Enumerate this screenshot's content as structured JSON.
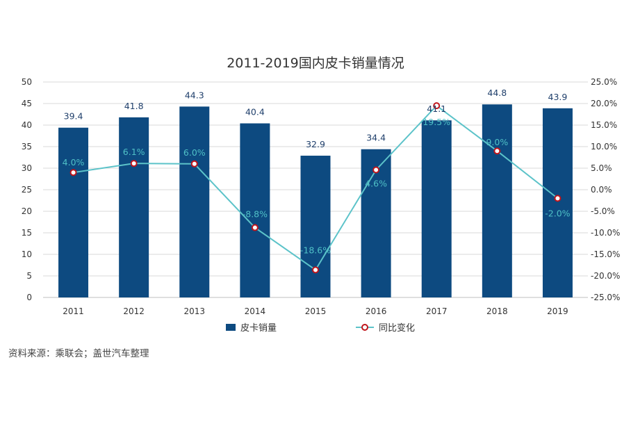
{
  "chart_data": {
    "type": "bar",
    "title": "2011-2019国内皮卡销量情况",
    "categories": [
      "2011",
      "2012",
      "2013",
      "2014",
      "2015",
      "2016",
      "2017",
      "2018",
      "2019"
    ],
    "series": [
      {
        "name": "皮卡销量",
        "kind": "bar",
        "axis": "left",
        "color": "#0d4a80",
        "values": [
          39.4,
          41.8,
          44.3,
          40.4,
          32.9,
          34.4,
          41.1,
          44.8,
          43.9
        ],
        "labels": [
          "39.4",
          "41.8",
          "44.3",
          "40.4",
          "32.9",
          "34.4",
          "41.1",
          "44.8",
          "43.9"
        ]
      },
      {
        "name": "同比变化",
        "kind": "line",
        "axis": "right",
        "color": "#5cc3c9",
        "marker_color": "#c0151b",
        "values": [
          4.0,
          6.1,
          6.0,
          -8.8,
          -18.6,
          4.6,
          19.5,
          9.0,
          -2.0
        ],
        "labels": [
          "4.0%",
          "6.1%",
          "6.0%",
          "-8.8%",
          "-18.6%",
          "4.6%",
          "19.5%",
          "9.0%",
          "-2.0%"
        ]
      }
    ],
    "y_left": {
      "min": 0,
      "max": 50,
      "step": 5,
      "ticks": [
        "0",
        "5",
        "10",
        "15",
        "20",
        "25",
        "30",
        "35",
        "40",
        "45",
        "50"
      ]
    },
    "y_right": {
      "min": -25,
      "max": 25,
      "step": 5,
      "ticks": [
        "-25.0%",
        "-20.0%",
        "-15.0%",
        "-10.0%",
        "-5.0%",
        "0.0%",
        "5.0%",
        "10.0%",
        "15.0%",
        "20.0%",
        "25.0%"
      ]
    },
    "grid": true,
    "legend_position": "bottom"
  },
  "source_note": "资料来源：乘联会；盖世汽车整理"
}
